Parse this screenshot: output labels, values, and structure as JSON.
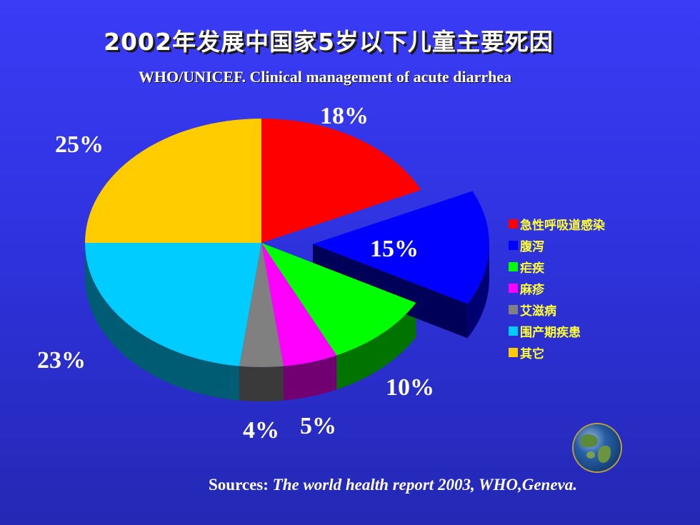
{
  "title": "2002年发展中国家5岁以下儿童主要死因",
  "subtitle": "WHO/UNICEF. Clinical management of acute diarrhea",
  "source": {
    "label": "Sources:",
    "text": "The world health report 2003, WHO,Geneva."
  },
  "chart_data": {
    "type": "pie",
    "title": "2002年发展中国家5岁以下儿童主要死因",
    "style": "3d-exploded",
    "legend_position": "right",
    "categories": [
      "急性呼吸道感染",
      "腹泻",
      "疟疾",
      "麻疹",
      "艾滋病",
      "围产期疾患",
      "其它"
    ],
    "values": [
      18,
      15,
      10,
      5,
      4,
      23,
      25
    ],
    "labels": [
      "18%",
      "15%",
      "10%",
      "5%",
      "4%",
      "23%",
      "25%"
    ],
    "colors": [
      "#ff0000",
      "#0000ff",
      "#00ff00",
      "#ff00ff",
      "#808080",
      "#00ccff",
      "#ffcc00"
    ],
    "exploded": [
      "腹泻"
    ]
  }
}
